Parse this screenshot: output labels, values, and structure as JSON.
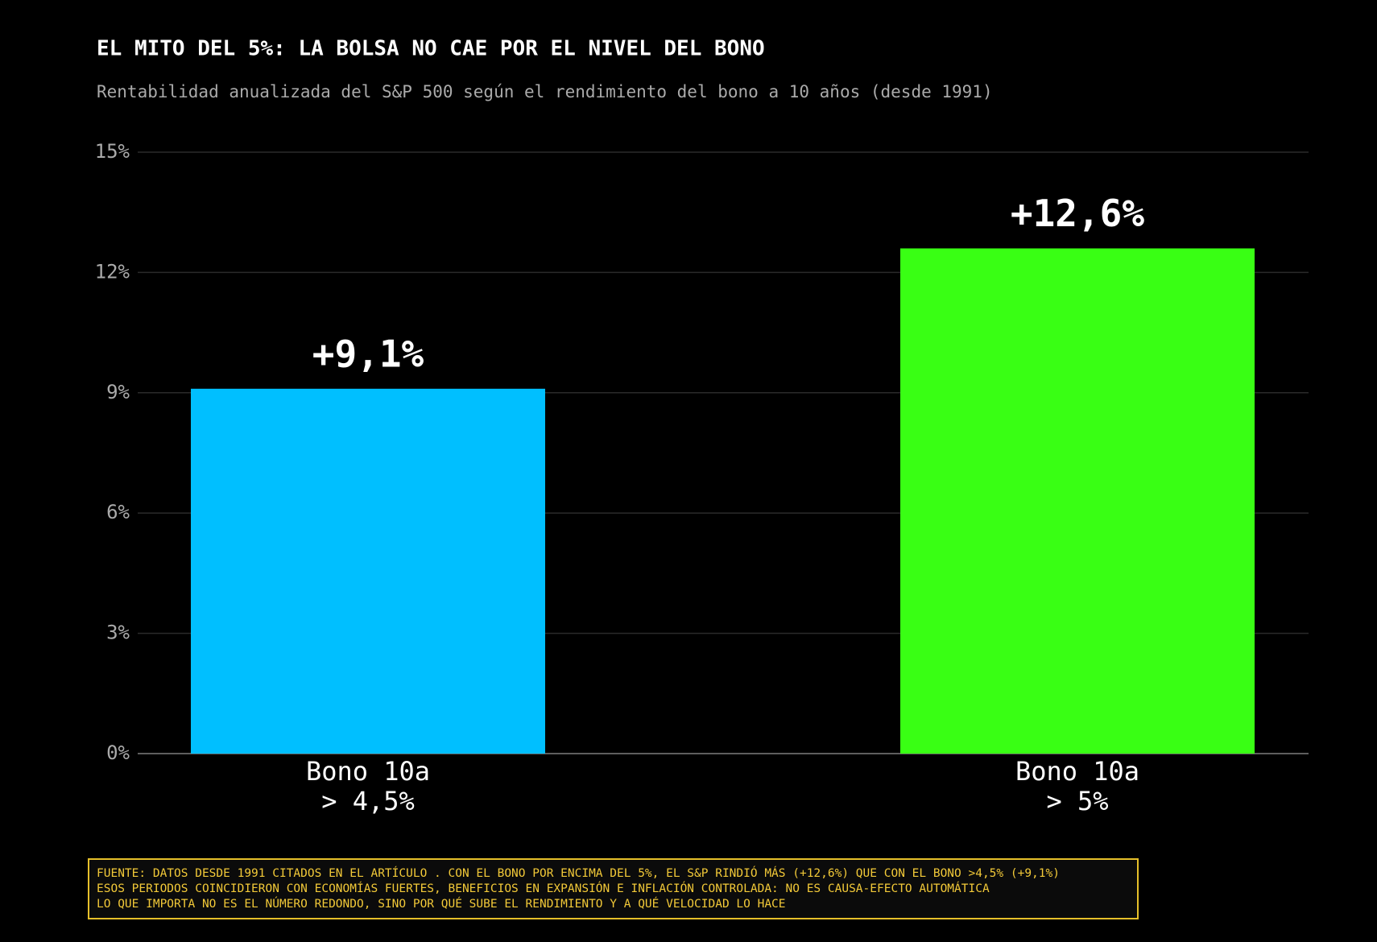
{
  "chart_data": {
    "type": "bar",
    "title": "EL MITO DEL 5%: LA BOLSA NO CAE POR EL NIVEL DEL BONO",
    "subtitle": "Rentabilidad anualizada del S&P 500 según el rendimiento del bono a 10 años (desde 1991)",
    "categories": [
      "Bono 10a\n> 4,5%",
      "Bono 10a\n> 5%"
    ],
    "values": [
      9.1,
      12.6
    ],
    "value_labels": [
      "+9,1%",
      "+12,6%"
    ],
    "colors": [
      "#00bfff",
      "#39ff14"
    ],
    "ylim": [
      0,
      15
    ],
    "yticks": [
      {
        "value": 0,
        "label": "0%"
      },
      {
        "value": 3,
        "label": "3%"
      },
      {
        "value": 6,
        "label": "6%"
      },
      {
        "value": 9,
        "label": "9%"
      },
      {
        "value": 12,
        "label": "12%"
      },
      {
        "value": 15,
        "label": "15%"
      }
    ],
    "grid": true,
    "notes": [
      "FUENTE: DATOS DESDE 1991 CITADOS EN EL ARTÍCULO . CON EL BONO POR ENCIMA DEL 5%, EL S&P RINDIÓ MÁS (+12,6%) QUE CON EL BONO >4,5% (+9,1%)",
      "ESOS PERIODOS COINCIDIERON CON ECONOMÍAS FUERTES, BENEFICIOS EN EXPANSIÓN E INFLACIÓN CONTROLADA: NO ES CAUSA-EFECTO AUTOMÁTICA",
      "LO QUE IMPORTA NO ES EL NÚMERO REDONDO, SINO POR QUÉ SUBE EL RENDIMIENTO Y A QUÉ VELOCIDAD LO HACE"
    ]
  }
}
